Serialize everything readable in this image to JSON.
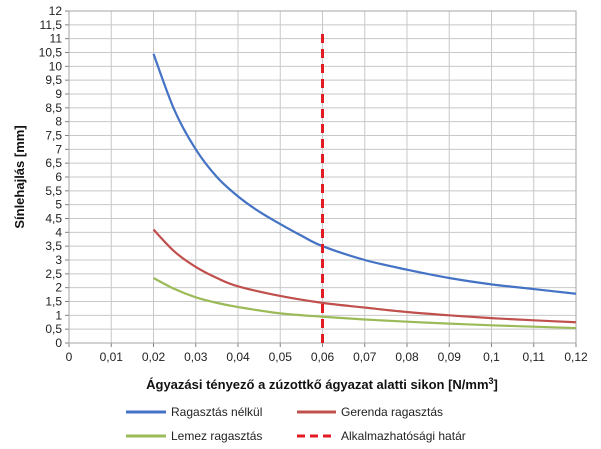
{
  "chart_data": {
    "type": "line",
    "xlabel": "Ágyazási  tényező  a  zúzottkő  ágyazat  alatti  sikon  [N/mm",
    "xlabel_superscript": "3",
    "xlabel_suffix": "]",
    "ylabel": "Sínlehajlás  [mm]",
    "xlim": [
      0,
      0.12
    ],
    "ylim": [
      0,
      12
    ],
    "x_ticks": [
      "0",
      "0,01",
      "0,02",
      "0,03",
      "0,04",
      "0,05",
      "0,06",
      "0,07",
      "0,08",
      "0,09",
      "0,1",
      "0,11",
      "0,12"
    ],
    "y_ticks": [
      "0",
      "0,5",
      "1",
      "1,5",
      "2",
      "2,5",
      "3",
      "3,5",
      "4",
      "4,5",
      "5",
      "5,5",
      "6",
      "6,5",
      "7",
      "7,5",
      "8",
      "8,5",
      "9",
      "9,5",
      "10",
      "10,5",
      "11",
      "11,5",
      "12"
    ],
    "grid": true,
    "legend_position": "bottom",
    "series": [
      {
        "name": "Ragasztás nélkül",
        "color": "#4472C4",
        "style": "solid",
        "x": [
          0.02,
          0.025,
          0.03,
          0.035,
          0.04,
          0.045,
          0.05,
          0.055,
          0.06,
          0.07,
          0.08,
          0.09,
          0.1,
          0.11,
          0.12
        ],
        "y": [
          10.45,
          8.4,
          7.0,
          6.0,
          5.3,
          4.75,
          4.3,
          3.88,
          3.5,
          3.0,
          2.65,
          2.35,
          2.12,
          1.95,
          1.78
        ]
      },
      {
        "name": "Gerenda ragasztás",
        "color": "#C0504D",
        "style": "solid",
        "x": [
          0.02,
          0.025,
          0.03,
          0.035,
          0.04,
          0.05,
          0.06,
          0.07,
          0.08,
          0.09,
          0.1,
          0.11,
          0.12
        ],
        "y": [
          4.1,
          3.3,
          2.75,
          2.35,
          2.05,
          1.7,
          1.45,
          1.28,
          1.12,
          1.0,
          0.9,
          0.82,
          0.75
        ]
      },
      {
        "name": "Lemez ragasztás",
        "color": "#9BBB59",
        "style": "solid",
        "x": [
          0.02,
          0.025,
          0.03,
          0.035,
          0.04,
          0.05,
          0.06,
          0.07,
          0.08,
          0.09,
          0.1,
          0.11,
          0.12
        ],
        "y": [
          2.35,
          1.95,
          1.65,
          1.45,
          1.3,
          1.07,
          0.95,
          0.85,
          0.77,
          0.7,
          0.64,
          0.59,
          0.54
        ]
      },
      {
        "name": "Alkalmazhatósági határ",
        "color": "#E31B23",
        "style": "dashed",
        "x": [
          0.06,
          0.06
        ],
        "y": [
          0,
          11.3
        ]
      }
    ]
  }
}
